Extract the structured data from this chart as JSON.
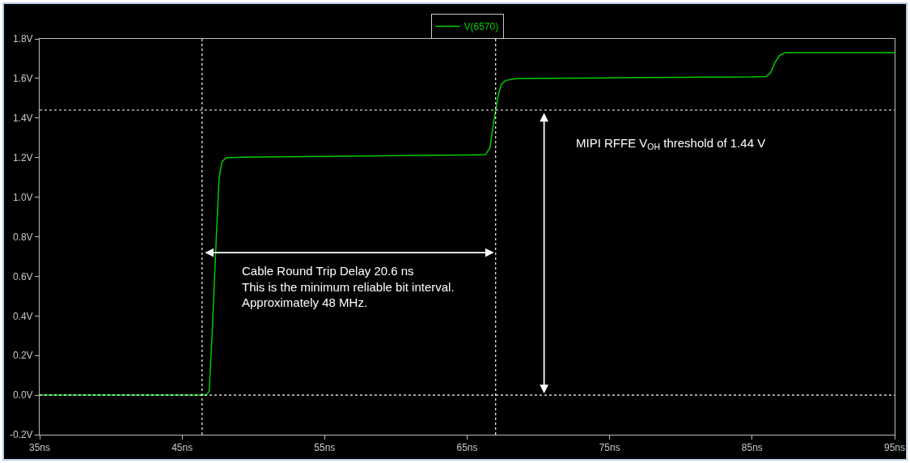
{
  "chart_data": {
    "type": "line",
    "grid": false,
    "legend": "top",
    "marker": "none",
    "line_style": "solid",
    "x": [
      35,
      46.7,
      46.9,
      47.1,
      47.4,
      47.6,
      47.8,
      48.1,
      50,
      55,
      60,
      65,
      66.3,
      66.6,
      66.8,
      67.0,
      67.2,
      67.4,
      67.7,
      68.5,
      75,
      80,
      85,
      86.0,
      86.3,
      86.6,
      86.9,
      87.3,
      95
    ],
    "series": [
      {
        "name": "V(6570)",
        "color": "#00cc00",
        "values": [
          0,
          0,
          0.02,
          0.3,
          0.8,
          1.1,
          1.18,
          1.2,
          1.203,
          1.206,
          1.21,
          1.213,
          1.215,
          1.25,
          1.35,
          1.44,
          1.52,
          1.57,
          1.59,
          1.6,
          1.603,
          1.606,
          1.608,
          1.61,
          1.63,
          1.68,
          1.715,
          1.73,
          1.73
        ]
      }
    ],
    "xlim": [
      35,
      95
    ],
    "xticks": [
      {
        "value": 35,
        "label": "35ns"
      },
      {
        "value": 45,
        "label": "45ns"
      },
      {
        "value": 55,
        "label": "55ns"
      },
      {
        "value": 65,
        "label": "65ns"
      },
      {
        "value": 75,
        "label": "75ns"
      },
      {
        "value": 85,
        "label": "85ns"
      },
      {
        "value": 95,
        "label": "95ns"
      }
    ],
    "ylim": [
      -0.2,
      1.8
    ],
    "yticks": [
      {
        "value": -0.2,
        "label": "-0.2V"
      },
      {
        "value": 0,
        "label": "0.0V"
      },
      {
        "value": 0.2,
        "label": "0.2V"
      },
      {
        "value": 0.4,
        "label": "0.4V"
      },
      {
        "value": 0.6,
        "label": "0.6V"
      },
      {
        "value": 0.8,
        "label": "0.8V"
      },
      {
        "value": 1.0,
        "label": "1.0V"
      },
      {
        "value": 1.2,
        "label": "1.2V"
      },
      {
        "value": 1.4,
        "label": "1.4V"
      },
      {
        "value": 1.6,
        "label": "1.6V"
      },
      {
        "value": 1.8,
        "label": "1.8V"
      }
    ],
    "ref_lines": [
      {
        "axis": "x",
        "value": 46.4,
        "color": "#ffffff",
        "line_style": "dotted"
      },
      {
        "axis": "x",
        "value": 67.0,
        "color": "#ffffff",
        "line_style": "dotted"
      },
      {
        "axis": "y",
        "value": 1.44,
        "color": "#ffffff",
        "line_style": "dotted"
      },
      {
        "axis": "y",
        "value": 0,
        "color": "#ffffff",
        "line_style": "dotted"
      }
    ],
    "annotations": [
      "Cable Round Trip Delay 20.6 ns\nThis is the minimum reliable bit interval.\nApproximately 48 MHz.",
      "MIPI RFFE V$_{OH}$ threshold of 1.44 V"
    ]
  }
}
